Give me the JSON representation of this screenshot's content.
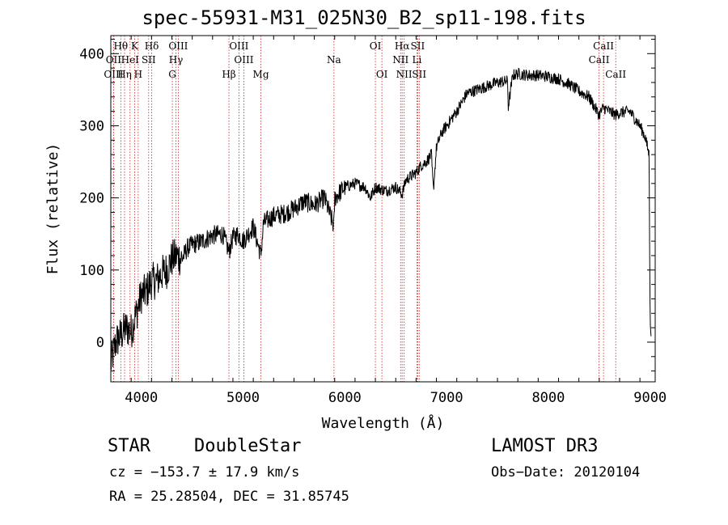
{
  "chart_data": {
    "type": "line",
    "title": "spec-55931-M31_025N30_B2_sp11-198.fits",
    "xlabel": "Wavelength (Å)",
    "ylabel": "Flux (relative)",
    "xlim": [
      3700,
      9050
    ],
    "ylim": [
      -55,
      425
    ],
    "xticks": [
      4000,
      5000,
      6000,
      7000,
      8000,
      9000
    ],
    "yticks": [
      0,
      100,
      200,
      300,
      400
    ],
    "spectrum_anchors": {
      "x": [
        3700,
        3750,
        3800,
        3850,
        3900,
        3950,
        4000,
        4050,
        4100,
        4150,
        4200,
        4250,
        4300,
        4350,
        4400,
        4450,
        4500,
        4600,
        4700,
        4800,
        4861,
        4900,
        4950,
        5000,
        5100,
        5175,
        5200,
        5300,
        5400,
        5500,
        5600,
        5700,
        5800,
        5893,
        5900,
        6000,
        6100,
        6200,
        6250,
        6300,
        6400,
        6500,
        6563,
        6600,
        6650,
        6700,
        6750,
        6800,
        6850,
        6870,
        6900,
        6950,
        7000,
        7100,
        7200,
        7300,
        7400,
        7500,
        7600,
        7605,
        7650,
        7700,
        7800,
        7900,
        8000,
        8100,
        8200,
        8300,
        8400,
        8498,
        8542,
        8600,
        8662,
        8700,
        8800,
        8900,
        8950,
        8990,
        9000,
        9010
      ],
      "y": [
        -30,
        0,
        10,
        20,
        15,
        40,
        65,
        70,
        85,
        85,
        95,
        100,
        115,
        120,
        115,
        130,
        135,
        140,
        148,
        150,
        125,
        145,
        150,
        140,
        160,
        120,
        165,
        175,
        178,
        185,
        195,
        190,
        200,
        160,
        200,
        215,
        220,
        215,
        200,
        215,
        210,
        215,
        205,
        225,
        230,
        235,
        245,
        250,
        260,
        210,
        270,
        290,
        300,
        320,
        345,
        350,
        355,
        360,
        362,
        325,
        370,
        372,
        370,
        370,
        368,
        365,
        358,
        348,
        340,
        315,
        325,
        320,
        315,
        318,
        320,
        300,
        285,
        260,
        40,
        0
      ],
      "noise_amplitude": 14
    },
    "spectral_lines": [
      {
        "label": "Hθ",
        "wavelength": 3798,
        "row": 1
      },
      {
        "label": "OII",
        "wavelength": 3727,
        "row": 2
      },
      {
        "label": "OIII",
        "wavelength": 3727,
        "row": 3
      },
      {
        "label": "Hη",
        "wavelength": 3835,
        "row": 3
      },
      {
        "label": "HeI",
        "wavelength": 3889,
        "row": 2
      },
      {
        "label": "K",
        "wavelength": 3934,
        "row": 1
      },
      {
        "label": "H",
        "wavelength": 3969,
        "row": 3
      },
      {
        "label": "SII",
        "wavelength": 4072,
        "row": 2
      },
      {
        "label": "Hδ",
        "wavelength": 4102,
        "row": 1
      },
      {
        "label": "OIII",
        "wavelength": 4363,
        "row": 1
      },
      {
        "label": "Hγ",
        "wavelength": 4340,
        "row": 2
      },
      {
        "label": "G",
        "wavelength": 4305,
        "row": 3
      },
      {
        "label": "Hβ",
        "wavelength": 4861,
        "row": 3
      },
      {
        "label": "OIII",
        "wavelength": 4959,
        "row": 1
      },
      {
        "label": "OIII",
        "wavelength": 5007,
        "row": 2
      },
      {
        "label": "Mg",
        "wavelength": 5175,
        "row": 3
      },
      {
        "label": "Na",
        "wavelength": 5893,
        "row": 2
      },
      {
        "label": "OI",
        "wavelength": 6300,
        "row": 1
      },
      {
        "label": "OI",
        "wavelength": 6364,
        "row": 3
      },
      {
        "label": "Hα",
        "wavelength": 6563,
        "row": 1
      },
      {
        "label": "NII",
        "wavelength": 6548,
        "row": 2
      },
      {
        "label": "NII",
        "wavelength": 6583,
        "row": 3
      },
      {
        "label": "SII",
        "wavelength": 6716,
        "row": 1
      },
      {
        "label": "SII",
        "wavelength": 6731,
        "row": 3
      },
      {
        "label": "Li",
        "wavelength": 6708,
        "row": 2
      },
      {
        "label": "CaII",
        "wavelength": 8542,
        "row": 1
      },
      {
        "label": "CaII",
        "wavelength": 8498,
        "row": 2
      },
      {
        "label": "CaII",
        "wavelength": 8662,
        "row": 3
      }
    ]
  },
  "info": {
    "class": "STAR",
    "subclass": "DoubleStar",
    "survey": "LAMOST DR3",
    "cz": "cz = −153.7 ± 17.9 km/s",
    "obs_date": "Obs−Date: 20120104",
    "radec": "RA =  25.28504, DEC =  31.85745"
  },
  "colors": {
    "line": "#000000",
    "marker": "#cc2222",
    "axis": "#000000"
  }
}
